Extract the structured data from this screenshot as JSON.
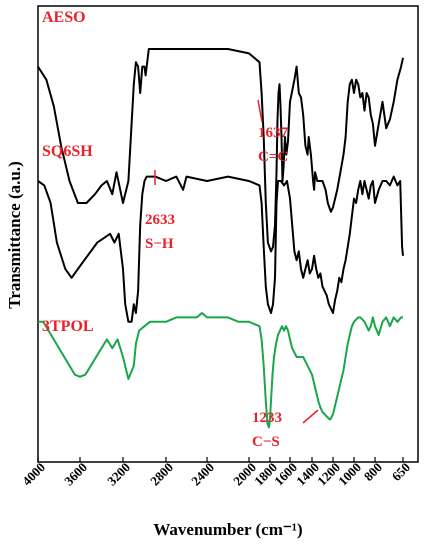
{
  "chart_data": {
    "type": "line",
    "xlabel": "Wavenumber (cm⁻¹)",
    "ylabel": "Transmittance (a.u.)",
    "xlim": [
      4000,
      650
    ],
    "x_reversed": true,
    "x_ticks": [
      4000,
      3600,
      3200,
      2800,
      2400,
      2000,
      1800,
      1600,
      1400,
      1200,
      1000,
      800,
      650
    ],
    "x_tick_labels": [
      "4000",
      "3600",
      "3200",
      "2800",
      "2400",
      "2000",
      "1800",
      "1600",
      "1400",
      "1200",
      "1000",
      "800",
      "650"
    ],
    "y_ticks_shown": false,
    "grid": false,
    "series": [
      {
        "name": "AESO",
        "color": "#000000",
        "label_color": "#e8222a",
        "points": [
          [
            4000,
            0.86
          ],
          [
            3920,
            0.83
          ],
          [
            3850,
            0.77
          ],
          [
            3780,
            0.68
          ],
          [
            3700,
            0.6
          ],
          [
            3620,
            0.55
          ],
          [
            3540,
            0.55
          ],
          [
            3460,
            0.57
          ],
          [
            3400,
            0.59
          ],
          [
            3350,
            0.6
          ],
          [
            3300,
            0.57
          ],
          [
            3260,
            0.62
          ],
          [
            3200,
            0.55
          ],
          [
            3150,
            0.6
          ],
          [
            3100,
            0.82
          ],
          [
            3080,
            0.87
          ],
          [
            3060,
            0.86
          ],
          [
            3040,
            0.8
          ],
          [
            3020,
            0.86
          ],
          [
            3000,
            0.86
          ],
          [
            2990,
            0.84
          ],
          [
            2975,
            0.87
          ],
          [
            2960,
            0.9
          ],
          [
            2800,
            0.9
          ],
          [
            2500,
            0.9
          ],
          [
            2200,
            0.9
          ],
          [
            2000,
            0.89
          ],
          [
            1900,
            0.87
          ],
          [
            1880,
            0.8
          ],
          [
            1860,
            0.7
          ],
          [
            1840,
            0.55
          ],
          [
            1820,
            0.46
          ],
          [
            1790,
            0.44
          ],
          [
            1770,
            0.45
          ],
          [
            1750,
            0.5
          ],
          [
            1735,
            0.62
          ],
          [
            1725,
            0.74
          ],
          [
            1715,
            0.8
          ],
          [
            1705,
            0.82
          ],
          [
            1695,
            0.77
          ],
          [
            1685,
            0.7
          ],
          [
            1675,
            0.6
          ],
          [
            1665,
            0.63
          ],
          [
            1650,
            0.7
          ],
          [
            1637,
            0.66
          ],
          [
            1620,
            0.69
          ],
          [
            1600,
            0.78
          ],
          [
            1560,
            0.83
          ],
          [
            1540,
            0.86
          ],
          [
            1520,
            0.8
          ],
          [
            1500,
            0.79
          ],
          [
            1480,
            0.75
          ],
          [
            1460,
            0.68
          ],
          [
            1440,
            0.66
          ],
          [
            1430,
            0.7
          ],
          [
            1410,
            0.66
          ],
          [
            1390,
            0.6
          ],
          [
            1380,
            0.58
          ],
          [
            1370,
            0.62
          ],
          [
            1350,
            0.6
          ],
          [
            1300,
            0.6
          ],
          [
            1270,
            0.58
          ],
          [
            1250,
            0.55
          ],
          [
            1220,
            0.53
          ],
          [
            1200,
            0.54
          ],
          [
            1180,
            0.56
          ],
          [
            1160,
            0.58
          ],
          [
            1130,
            0.62
          ],
          [
            1100,
            0.66
          ],
          [
            1080,
            0.7
          ],
          [
            1060,
            0.78
          ],
          [
            1040,
            0.82
          ],
          [
            1020,
            0.83
          ],
          [
            1000,
            0.8
          ],
          [
            980,
            0.83
          ],
          [
            960,
            0.82
          ],
          [
            940,
            0.79
          ],
          [
            920,
            0.8
          ],
          [
            900,
            0.76
          ],
          [
            880,
            0.8
          ],
          [
            860,
            0.79
          ],
          [
            840,
            0.75
          ],
          [
            820,
            0.73
          ],
          [
            800,
            0.68
          ],
          [
            780,
            0.73
          ],
          [
            760,
            0.78
          ],
          [
            740,
            0.72
          ],
          [
            720,
            0.74
          ],
          [
            700,
            0.78
          ],
          [
            680,
            0.83
          ],
          [
            660,
            0.86
          ],
          [
            650,
            0.88
          ]
        ]
      },
      {
        "name": "SQ6SH",
        "color": "#000000",
        "label_color": "#e8222a",
        "points": [
          [
            4000,
            0.6
          ],
          [
            3940,
            0.59
          ],
          [
            3880,
            0.55
          ],
          [
            3820,
            0.46
          ],
          [
            3740,
            0.4
          ],
          [
            3680,
            0.38
          ],
          [
            3620,
            0.4
          ],
          [
            3560,
            0.42
          ],
          [
            3500,
            0.44
          ],
          [
            3440,
            0.46
          ],
          [
            3380,
            0.47
          ],
          [
            3320,
            0.48
          ],
          [
            3280,
            0.46
          ],
          [
            3240,
            0.48
          ],
          [
            3200,
            0.4
          ],
          [
            3180,
            0.32
          ],
          [
            3150,
            0.28
          ],
          [
            3120,
            0.28
          ],
          [
            3100,
            0.32
          ],
          [
            3080,
            0.3
          ],
          [
            3060,
            0.35
          ],
          [
            3040,
            0.5
          ],
          [
            3020,
            0.57
          ],
          [
            3000,
            0.6
          ],
          [
            2980,
            0.61
          ],
          [
            2900,
            0.61
          ],
          [
            2800,
            0.6
          ],
          [
            2700,
            0.61
          ],
          [
            2633,
            0.58
          ],
          [
            2600,
            0.61
          ],
          [
            2400,
            0.6
          ],
          [
            2200,
            0.61
          ],
          [
            2000,
            0.6
          ],
          [
            1900,
            0.59
          ],
          [
            1880,
            0.55
          ],
          [
            1860,
            0.45
          ],
          [
            1840,
            0.36
          ],
          [
            1820,
            0.32
          ],
          [
            1790,
            0.3
          ],
          [
            1770,
            0.32
          ],
          [
            1750,
            0.38
          ],
          [
            1735,
            0.55
          ],
          [
            1720,
            0.6
          ],
          [
            1690,
            0.6
          ],
          [
            1660,
            0.59
          ],
          [
            1630,
            0.6
          ],
          [
            1600,
            0.56
          ],
          [
            1580,
            0.5
          ],
          [
            1560,
            0.44
          ],
          [
            1540,
            0.42
          ],
          [
            1520,
            0.44
          ],
          [
            1500,
            0.4
          ],
          [
            1480,
            0.38
          ],
          [
            1460,
            0.4
          ],
          [
            1440,
            0.42
          ],
          [
            1420,
            0.39
          ],
          [
            1400,
            0.4
          ],
          [
            1380,
            0.43
          ],
          [
            1360,
            0.4
          ],
          [
            1340,
            0.38
          ],
          [
            1320,
            0.39
          ],
          [
            1300,
            0.36
          ],
          [
            1280,
            0.35
          ],
          [
            1260,
            0.34
          ],
          [
            1240,
            0.32
          ],
          [
            1220,
            0.31
          ],
          [
            1200,
            0.3
          ],
          [
            1180,
            0.33
          ],
          [
            1160,
            0.35
          ],
          [
            1140,
            0.38
          ],
          [
            1120,
            0.37
          ],
          [
            1100,
            0.4
          ],
          [
            1080,
            0.42
          ],
          [
            1060,
            0.45
          ],
          [
            1040,
            0.48
          ],
          [
            1020,
            0.52
          ],
          [
            1000,
            0.56
          ],
          [
            980,
            0.55
          ],
          [
            960,
            0.58
          ],
          [
            940,
            0.6
          ],
          [
            920,
            0.57
          ],
          [
            900,
            0.6
          ],
          [
            880,
            0.58
          ],
          [
            860,
            0.56
          ],
          [
            840,
            0.59
          ],
          [
            820,
            0.6
          ],
          [
            800,
            0.55
          ],
          [
            780,
            0.58
          ],
          [
            760,
            0.6
          ],
          [
            740,
            0.6
          ],
          [
            720,
            0.59
          ],
          [
            700,
            0.61
          ],
          [
            680,
            0.59
          ],
          [
            665,
            0.6
          ],
          [
            655,
            0.45
          ],
          [
            650,
            0.43
          ]
        ]
      },
      {
        "name": "3TPOL",
        "color": "#1aa64a",
        "label_color": "#e8222a",
        "points": [
          [
            4000,
            0.28
          ],
          [
            3950,
            0.28
          ],
          [
            3900,
            0.26
          ],
          [
            3850,
            0.24
          ],
          [
            3800,
            0.22
          ],
          [
            3750,
            0.2
          ],
          [
            3700,
            0.18
          ],
          [
            3650,
            0.16
          ],
          [
            3600,
            0.155
          ],
          [
            3550,
            0.16
          ],
          [
            3500,
            0.18
          ],
          [
            3450,
            0.2
          ],
          [
            3400,
            0.22
          ],
          [
            3350,
            0.24
          ],
          [
            3300,
            0.22
          ],
          [
            3250,
            0.24
          ],
          [
            3200,
            0.2
          ],
          [
            3150,
            0.15
          ],
          [
            3100,
            0.18
          ],
          [
            3080,
            0.23
          ],
          [
            3050,
            0.26
          ],
          [
            3000,
            0.27
          ],
          [
            2950,
            0.28
          ],
          [
            2900,
            0.28
          ],
          [
            2800,
            0.28
          ],
          [
            2700,
            0.29
          ],
          [
            2600,
            0.29
          ],
          [
            2500,
            0.29
          ],
          [
            2450,
            0.3
          ],
          [
            2400,
            0.29
          ],
          [
            2300,
            0.29
          ],
          [
            2200,
            0.29
          ],
          [
            2100,
            0.28
          ],
          [
            2000,
            0.28
          ],
          [
            1900,
            0.27
          ],
          [
            1880,
            0.24
          ],
          [
            1860,
            0.18
          ],
          [
            1840,
            0.1
          ],
          [
            1825,
            0.05
          ],
          [
            1810,
            0.04
          ],
          [
            1800,
            0.06
          ],
          [
            1790,
            0.1
          ],
          [
            1775,
            0.16
          ],
          [
            1760,
            0.2
          ],
          [
            1740,
            0.23
          ],
          [
            1720,
            0.25
          ],
          [
            1700,
            0.26
          ],
          [
            1680,
            0.27
          ],
          [
            1660,
            0.26
          ],
          [
            1640,
            0.27
          ],
          [
            1620,
            0.26
          ],
          [
            1600,
            0.24
          ],
          [
            1580,
            0.22
          ],
          [
            1560,
            0.21
          ],
          [
            1540,
            0.2
          ],
          [
            1520,
            0.2
          ],
          [
            1500,
            0.2
          ],
          [
            1480,
            0.2
          ],
          [
            1460,
            0.19
          ],
          [
            1440,
            0.18
          ],
          [
            1420,
            0.17
          ],
          [
            1400,
            0.16
          ],
          [
            1380,
            0.14
          ],
          [
            1360,
            0.12
          ],
          [
            1340,
            0.1
          ],
          [
            1320,
            0.085
          ],
          [
            1300,
            0.075
          ],
          [
            1280,
            0.07
          ],
          [
            1260,
            0.065
          ],
          [
            1240,
            0.06
          ],
          [
            1230,
            0.058
          ],
          [
            1220,
            0.06
          ],
          [
            1200,
            0.07
          ],
          [
            1180,
            0.09
          ],
          [
            1160,
            0.11
          ],
          [
            1140,
            0.13
          ],
          [
            1120,
            0.15
          ],
          [
            1100,
            0.17
          ],
          [
            1080,
            0.2
          ],
          [
            1060,
            0.23
          ],
          [
            1040,
            0.25
          ],
          [
            1020,
            0.27
          ],
          [
            1000,
            0.28
          ],
          [
            980,
            0.285
          ],
          [
            960,
            0.29
          ],
          [
            940,
            0.29
          ],
          [
            920,
            0.285
          ],
          [
            900,
            0.28
          ],
          [
            880,
            0.27
          ],
          [
            860,
            0.26
          ],
          [
            840,
            0.27
          ],
          [
            820,
            0.29
          ],
          [
            800,
            0.27
          ],
          [
            780,
            0.25
          ],
          [
            760,
            0.28
          ],
          [
            740,
            0.29
          ],
          [
            720,
            0.27
          ],
          [
            700,
            0.29
          ],
          [
            680,
            0.28
          ],
          [
            660,
            0.29
          ],
          [
            650,
            0.29
          ]
        ]
      }
    ],
    "annotations": [
      {
        "series": "AESO",
        "lines": [
          "1637",
          "C=C"
        ],
        "at_x": 1637,
        "color": "#e8222a"
      },
      {
        "series": "SQ6SH",
        "lines": [
          "2633",
          "S−H"
        ],
        "at_x": 2633,
        "color": "#e8222a"
      },
      {
        "series": "3TPOL",
        "lines": [
          "1233",
          "C−S"
        ],
        "at_x": 1233,
        "color": "#e8222a"
      }
    ]
  }
}
